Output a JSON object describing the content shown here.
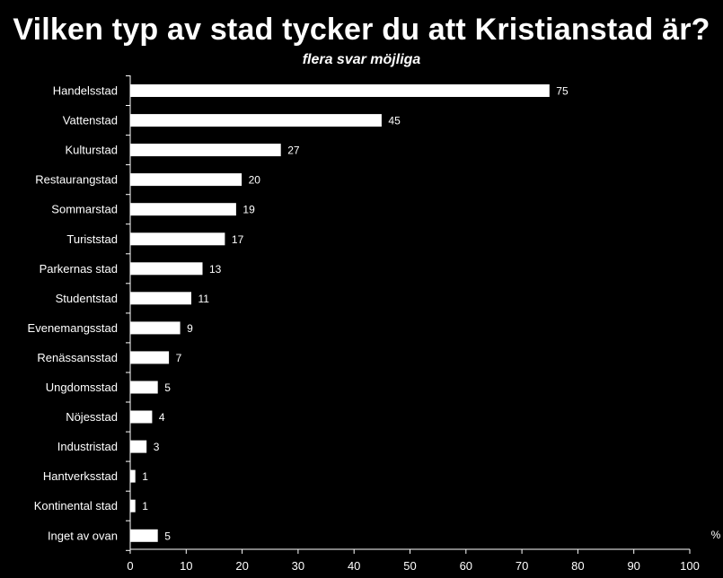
{
  "chart_data": {
    "type": "bar",
    "orientation": "horizontal",
    "title": "Vilken typ av stad tycker du att Kristianstad är?",
    "subtitle": "flera svar möjliga",
    "categories": [
      "Handelsstad",
      "Vattenstad",
      "Kulturstad",
      "Restaurangstad",
      "Sommarstad",
      "Turiststad",
      "Parkernas stad",
      "Studentstad",
      "Evenemangsstad",
      "Renässansstad",
      "Ungdomsstad",
      "Nöjesstad",
      "Industristad",
      "Hantverksstad",
      "Kontinental stad",
      "Inget av ovan"
    ],
    "values": [
      75,
      45,
      27,
      20,
      19,
      17,
      13,
      11,
      9,
      7,
      5,
      4,
      3,
      1,
      1,
      5
    ],
    "xlim": [
      0,
      100
    ],
    "xticks": [
      0,
      10,
      20,
      30,
      40,
      50,
      60,
      70,
      80,
      90,
      100
    ],
    "xunit": "%",
    "grid": false,
    "legend": "none",
    "colors": {
      "background": "#000000",
      "bar_fill": "#ffffff",
      "bar_stroke": "#000000",
      "text": "#ffffff"
    }
  }
}
